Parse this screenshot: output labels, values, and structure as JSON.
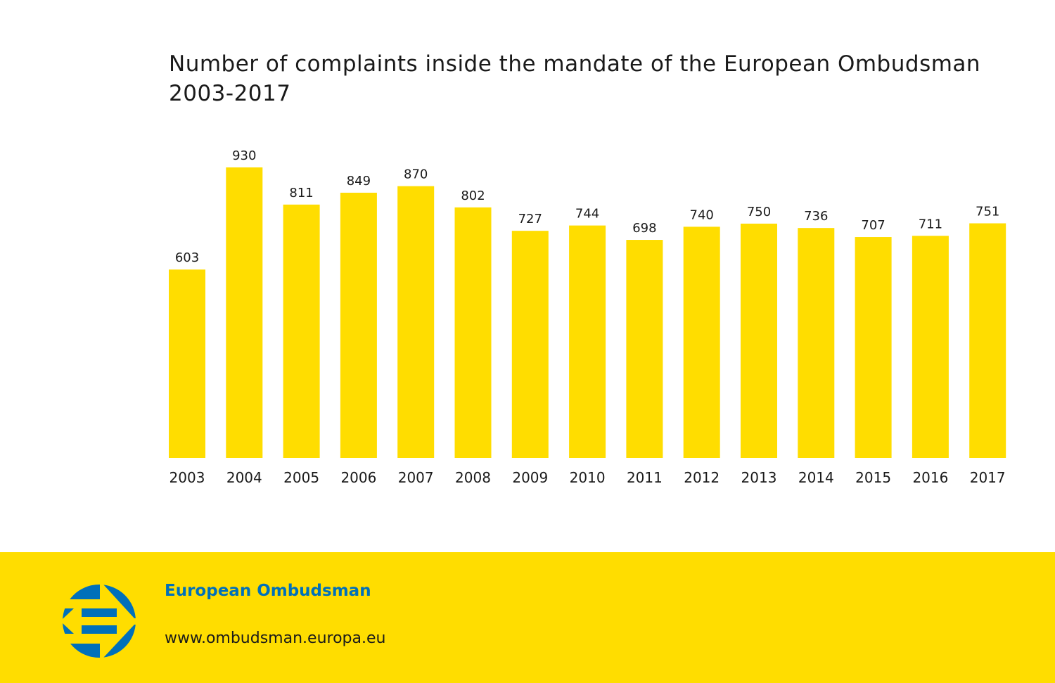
{
  "chart_data": {
    "type": "bar",
    "title": "Number of complaints inside the mandate of the European Ombudsman 2003-2017",
    "categories": [
      "2003",
      "2004",
      "2005",
      "2006",
      "2007",
      "2008",
      "2009",
      "2010",
      "2011",
      "2012",
      "2013",
      "2014",
      "2015",
      "2016",
      "2017"
    ],
    "values": [
      603,
      930,
      811,
      849,
      870,
      802,
      727,
      744,
      698,
      740,
      750,
      736,
      707,
      711,
      751
    ],
    "xlabel": "",
    "ylabel": "",
    "ylim": [
      0,
      930
    ],
    "grid": false,
    "data_labels": true,
    "bar_color": "#FFDD00"
  },
  "footer": {
    "organization": "European Ombudsman",
    "url": "www.ombudsman.europa.eu",
    "logo_icon": "european-ombudsman-logo-icon",
    "background_color": "#FFDD00",
    "brand_color": "#0070BA"
  }
}
